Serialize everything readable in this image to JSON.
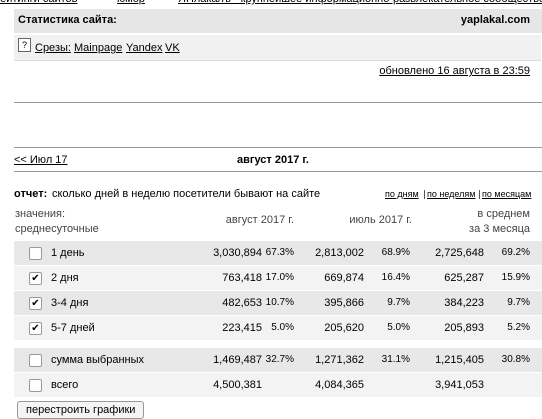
{
  "nav": [
    "рейтинги сайтов",
    "юмор",
    "ЯПлакалъ - крупнейшее информационно-развлекательное сообщество"
  ],
  "header": {
    "title": "Статистика сайта:",
    "site": "yaplakal.com"
  },
  "slices": {
    "help": "?",
    "label": "Срезы:",
    "links": [
      "Mainpage",
      "Yandex",
      "VK"
    ]
  },
  "updated": "обновлено 16 августа в 23:59",
  "period": {
    "prev": "<< Июл 17",
    "current": "август 2017 г."
  },
  "report": {
    "label": "отчет:",
    "text": "сколько дней в неделю посетители бывают на сайте",
    "views": [
      "по дням",
      "по неделям",
      "по месяцам"
    ]
  },
  "table": {
    "columns": {
      "values": [
        "значения:",
        "среднесуточные"
      ],
      "aug": "август 2017 г.",
      "jul": "июль 2017 г.",
      "avg": [
        "в среднем",
        "за 3 месяца"
      ]
    },
    "rows": [
      {
        "label": "1 день",
        "checked": false,
        "aug": "3,030,894",
        "aug_share": "67.3%",
        "jul": "2,813,002",
        "jul_share": "68.9%",
        "avg": "2,725,648",
        "avg_share": "69.2%"
      },
      {
        "label": "2 дня",
        "checked": true,
        "aug": "763,418",
        "aug_share": "17.0%",
        "jul": "669,874",
        "jul_share": "16.4%",
        "avg": "625,287",
        "avg_share": "15.9%"
      },
      {
        "label": "3-4 дня",
        "checked": true,
        "aug": "482,653",
        "aug_share": "10.7%",
        "jul": "395,866",
        "jul_share": "9.7%",
        "avg": "384,223",
        "avg_share": "9.7%"
      },
      {
        "label": "5-7 дней",
        "checked": true,
        "aug": "223,415",
        "aug_share": "5.0%",
        "jul": "205,620",
        "jul_share": "5.0%",
        "avg": "205,893",
        "avg_share": "5.2%"
      }
    ],
    "totals": [
      {
        "label": "сумма выбранных",
        "checked": false,
        "aug": "1,469,487",
        "aug_share": "32.7%",
        "jul": "1,271,362",
        "jul_share": "31.1%",
        "avg": "1,215,405",
        "avg_share": "30.8%"
      },
      {
        "label": "всего",
        "checked": false,
        "aug": "4,500,381",
        "jul": "4,084,365",
        "avg": "3,941,053"
      }
    ]
  },
  "button": "перестроить графики"
}
